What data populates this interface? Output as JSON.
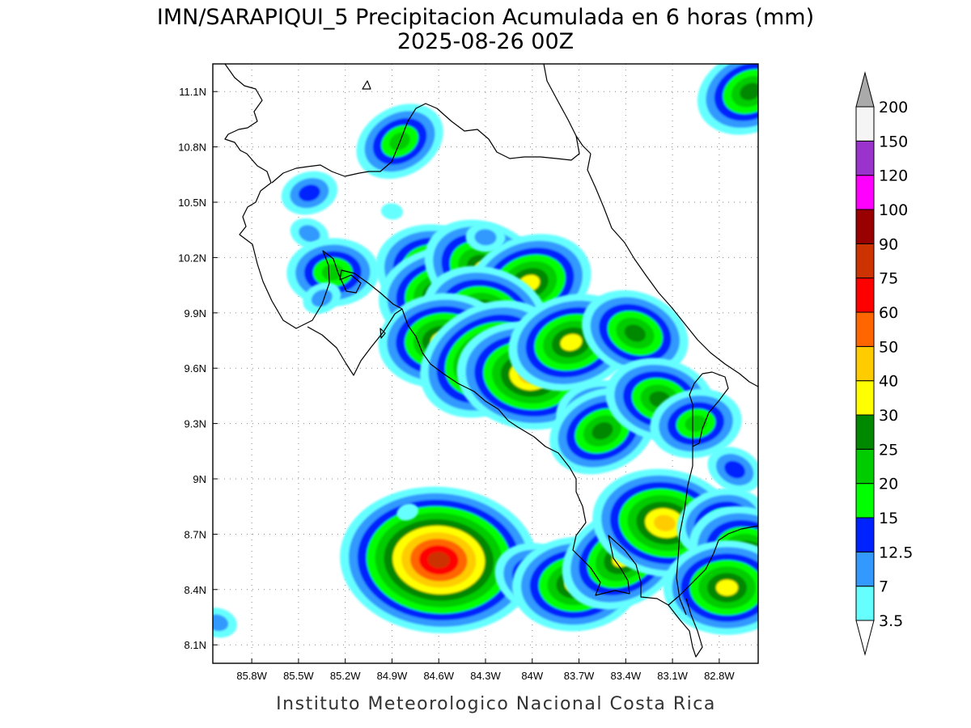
{
  "title": {
    "line1": "IMN/SARAPIQUI_5 Precipitacion Acumulada en 6 horas (mm)",
    "line2": "2025-08-26 00Z"
  },
  "credit": "Instituto Meteorologico Nacional Costa Rica",
  "map": {
    "lon_range": [
      -86.05,
      -82.55
    ],
    "lat_range": [
      8.0,
      11.25
    ],
    "x_ticks": [
      {
        "value": -85.8,
        "label": "85.8W"
      },
      {
        "value": -85.5,
        "label": "85.5W"
      },
      {
        "value": -85.2,
        "label": "85.2W"
      },
      {
        "value": -84.9,
        "label": "84.9W"
      },
      {
        "value": -84.6,
        "label": "84.6W"
      },
      {
        "value": -84.3,
        "label": "84.3W"
      },
      {
        "value": -84.0,
        "label": "84W"
      },
      {
        "value": -83.7,
        "label": "83.7W"
      },
      {
        "value": -83.4,
        "label": "83.4W"
      },
      {
        "value": -83.1,
        "label": "83.1W"
      },
      {
        "value": -82.8,
        "label": "82.8W"
      }
    ],
    "y_ticks": [
      {
        "value": 8.1,
        "label": "8.1N"
      },
      {
        "value": 8.4,
        "label": "8.4N"
      },
      {
        "value": 8.7,
        "label": "8.7N"
      },
      {
        "value": 9.0,
        "label": "9N"
      },
      {
        "value": 9.3,
        "label": "9.3N"
      },
      {
        "value": 9.6,
        "label": "9.6N"
      },
      {
        "value": 9.9,
        "label": "9.9N"
      },
      {
        "value": 10.2,
        "label": "10.2N"
      },
      {
        "value": 10.5,
        "label": "10.5N"
      },
      {
        "value": 10.8,
        "label": "10.8N"
      },
      {
        "value": 11.1,
        "label": "11.1N"
      }
    ],
    "grid": true,
    "grid_style": "dotted",
    "coastline_color": "#000000",
    "precip_cells": [
      {
        "lon": -84.85,
        "lat": 10.83,
        "peak": 22
      },
      {
        "lon": -84.9,
        "lat": 10.45,
        "peak": 5
      },
      {
        "lon": -85.43,
        "lat": 10.55,
        "peak": 13
      },
      {
        "lon": -85.43,
        "lat": 10.33,
        "peak": 12
      },
      {
        "lon": -85.28,
        "lat": 10.12,
        "peak": 20
      },
      {
        "lon": -85.35,
        "lat": 9.98,
        "peak": 10
      },
      {
        "lon": -84.6,
        "lat": 10.12,
        "peak": 35
      },
      {
        "lon": -84.58,
        "lat": 10.0,
        "peak": 30
      },
      {
        "lon": -84.3,
        "lat": 10.13,
        "peak": 30
      },
      {
        "lon": -84.3,
        "lat": 10.31,
        "peak": 10
      },
      {
        "lon": -84.02,
        "lat": 10.06,
        "peak": 35
      },
      {
        "lon": -84.3,
        "lat": 9.89,
        "peak": 35
      },
      {
        "lon": -84.58,
        "lat": 9.75,
        "peak": 35
      },
      {
        "lon": -84.28,
        "lat": 9.65,
        "peak": 45
      },
      {
        "lon": -84.02,
        "lat": 9.56,
        "peak": 45
      },
      {
        "lon": -83.75,
        "lat": 9.74,
        "peak": 35
      },
      {
        "lon": -83.34,
        "lat": 9.79,
        "peak": 25
      },
      {
        "lon": -83.55,
        "lat": 9.35,
        "peak": 20
      },
      {
        "lon": -83.55,
        "lat": 9.26,
        "peak": 25
      },
      {
        "lon": -83.18,
        "lat": 9.43,
        "peak": 25
      },
      {
        "lon": -82.95,
        "lat": 9.3,
        "peak": 20
      },
      {
        "lon": -82.7,
        "lat": 9.05,
        "peak": 13
      },
      {
        "lon": -84.6,
        "lat": 8.56,
        "peak": 75
      },
      {
        "lon": -84.8,
        "lat": 8.82,
        "peak": 5
      },
      {
        "lon": -83.95,
        "lat": 8.46,
        "peak": 20
      },
      {
        "lon": -83.72,
        "lat": 8.43,
        "peak": 35
      },
      {
        "lon": -83.42,
        "lat": 8.57,
        "peak": 30
      },
      {
        "lon": -83.15,
        "lat": 8.76,
        "peak": 40
      },
      {
        "lon": -82.78,
        "lat": 8.76,
        "peak": 20
      },
      {
        "lon": -82.6,
        "lat": 8.58,
        "peak": 35
      },
      {
        "lon": -82.75,
        "lat": 8.41,
        "peak": 30
      },
      {
        "lon": -82.6,
        "lat": 11.1,
        "peak": 25
      },
      {
        "lon": -86.02,
        "lat": 8.22,
        "peak": 12
      }
    ]
  },
  "colorbar": {
    "levels": [
      "3.5",
      "7",
      "12.5",
      "15",
      "20",
      "25",
      "30",
      "40",
      "50",
      "60",
      "75",
      "90",
      "100",
      "120",
      "150",
      "200"
    ],
    "colors": [
      "#ffffff",
      "#66ffff",
      "#3399ff",
      "#0022ff",
      "#00ff00",
      "#00cc00",
      "#008800",
      "#ffff00",
      "#ffcc00",
      "#ff6600",
      "#ff0000",
      "#cc3300",
      "#990000",
      "#ff00ff",
      "#9933cc",
      "#f5f5f5",
      "#aaaaaa"
    ]
  }
}
